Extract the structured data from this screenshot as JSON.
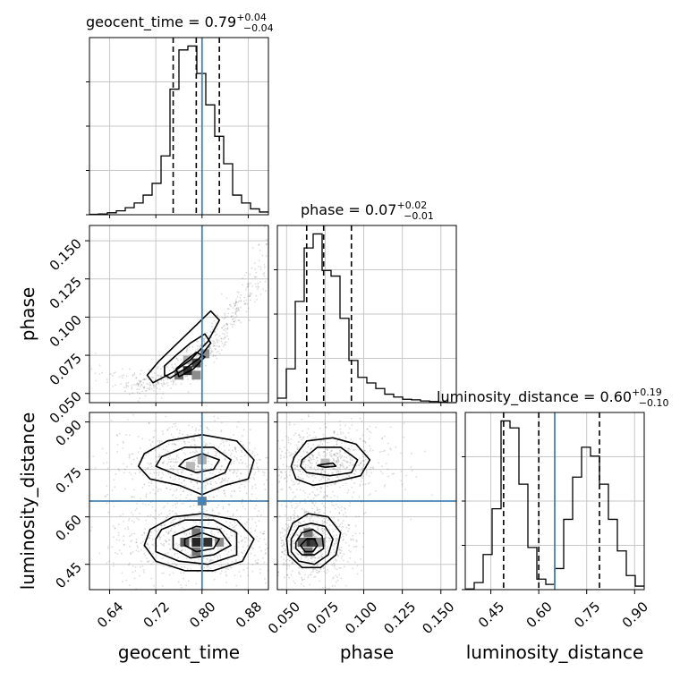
{
  "chart_data": {
    "type": "corner",
    "parameters": [
      {
        "name": "geocent_time",
        "axis_label": "geocent_time",
        "title_prefix": "geocent_time = ",
        "title_median": "0.79",
        "title_plus": "+0.04",
        "title_minus": "−0.04",
        "range": [
          0.605,
          0.915
        ],
        "ticks": [
          0.64,
          0.72,
          0.8,
          0.88
        ],
        "tick_labels": [
          "0.64",
          "0.72",
          "0.80",
          "0.88"
        ],
        "truth": 0.8,
        "quantiles": [
          0.75,
          0.79,
          0.83
        ],
        "hist": {
          "edges": [
            0.605,
            0.6205,
            0.636,
            0.6515,
            0.667,
            0.6825,
            0.698,
            0.7135,
            0.729,
            0.7445,
            0.76,
            0.7755,
            0.791,
            0.8065,
            0.822,
            0.8375,
            0.853,
            0.8685,
            0.884,
            0.8995,
            0.915
          ],
          "counts": [
            1,
            2,
            5,
            10,
            18,
            30,
            50,
            80,
            150,
            320,
            420,
            430,
            360,
            280,
            200,
            130,
            50,
            30,
            15,
            7
          ]
        }
      },
      {
        "name": "phase",
        "axis_label": "phase",
        "title_prefix": "phase = ",
        "title_median": "0.07",
        "title_plus": "+0.02",
        "title_minus": "−0.01",
        "range": [
          0.044,
          0.16
        ],
        "ticks": [
          0.05,
          0.075,
          0.1,
          0.125,
          0.15
        ],
        "tick_labels": [
          "0.050",
          "0.075",
          "0.100",
          "0.125",
          "0.150"
        ],
        "truth": null,
        "quantiles": [
          0.063,
          0.074,
          0.092
        ],
        "hist": {
          "edges": [
            0.044,
            0.0498,
            0.0556,
            0.0614,
            0.0672,
            0.073,
            0.0788,
            0.0846,
            0.0904,
            0.0962,
            0.102,
            0.1078,
            0.1136,
            0.1194,
            0.1252,
            0.131,
            0.1368,
            0.1426,
            0.1484,
            0.1542,
            0.16
          ],
          "counts": [
            8,
            60,
            180,
            275,
            300,
            235,
            225,
            150,
            75,
            45,
            35,
            25,
            15,
            10,
            6,
            5,
            3,
            2,
            1,
            0
          ]
        }
      },
      {
        "name": "luminosity_distance",
        "axis_label": "luminosity_distance",
        "title_prefix": "luminosity_distance = ",
        "title_median": "0.60",
        "title_plus": "+0.19",
        "title_minus": "−0.10",
        "range": [
          0.37,
          0.93
        ],
        "ticks": [
          0.45,
          0.6,
          0.75,
          0.9
        ],
        "tick_labels": [
          "0.45",
          "0.60",
          "0.75",
          "0.90"
        ],
        "truth": 0.65,
        "quantiles": [
          0.49,
          0.6,
          0.79
        ],
        "hist": {
          "edges": [
            0.37,
            0.398,
            0.426,
            0.454,
            0.482,
            0.51,
            0.538,
            0.566,
            0.594,
            0.622,
            0.65,
            0.678,
            0.706,
            0.734,
            0.762,
            0.79,
            0.818,
            0.846,
            0.874,
            0.902,
            0.93
          ],
          "counts": [
            2,
            20,
            100,
            230,
            480,
            460,
            300,
            120,
            30,
            15,
            60,
            200,
            320,
            405,
            380,
            300,
            200,
            110,
            40,
            10
          ]
        }
      }
    ],
    "pairs": [
      {
        "x": "geocent_time",
        "y": "phase",
        "truth_x": 0.8,
        "truth_y": null,
        "contours": [
          [
            [
              0.72,
              0.058
            ],
            [
              0.75,
              0.064
            ],
            [
              0.78,
              0.072
            ],
            [
              0.81,
              0.084
            ],
            [
              0.83,
              0.098
            ],
            [
              0.815,
              0.104
            ],
            [
              0.785,
              0.093
            ],
            [
              0.755,
              0.082
            ],
            [
              0.725,
              0.071
            ],
            [
              0.705,
              0.062
            ],
            [
              0.715,
              0.057
            ]
          ],
          [
            [
              0.745,
              0.06
            ],
            [
              0.77,
              0.066
            ],
            [
              0.795,
              0.073
            ],
            [
              0.815,
              0.083
            ],
            [
              0.805,
              0.089
            ],
            [
              0.78,
              0.083
            ],
            [
              0.755,
              0.075
            ],
            [
              0.735,
              0.068
            ],
            [
              0.735,
              0.062
            ]
          ],
          [
            [
              0.76,
              0.061
            ],
            [
              0.785,
              0.066
            ],
            [
              0.805,
              0.074
            ],
            [
              0.79,
              0.077
            ],
            [
              0.77,
              0.071
            ],
            [
              0.755,
              0.066
            ]
          ]
        ],
        "dense_cells": [
          [
            0.775,
            0.065,
            0.9
          ],
          [
            0.79,
            0.07,
            0.8
          ],
          [
            0.76,
            0.062,
            0.6
          ],
          [
            0.805,
            0.076,
            0.5
          ],
          [
            0.79,
            0.062,
            0.5
          ],
          [
            0.775,
            0.072,
            0.35
          ]
        ]
      },
      {
        "x": "geocent_time",
        "y": "luminosity_distance",
        "truth_x": 0.8,
        "truth_y": 0.65,
        "contours": [
          [
            [
              0.7,
              0.8
            ],
            [
              0.74,
              0.84
            ],
            [
              0.8,
              0.86
            ],
            [
              0.86,
              0.84
            ],
            [
              0.89,
              0.78
            ],
            [
              0.88,
              0.72
            ],
            [
              0.84,
              0.7
            ],
            [
              0.8,
              0.67
            ],
            [
              0.76,
              0.7
            ],
            [
              0.71,
              0.72
            ],
            [
              0.69,
              0.76
            ]
          ],
          [
            [
              0.73,
              0.79
            ],
            [
              0.77,
              0.82
            ],
            [
              0.82,
              0.82
            ],
            [
              0.85,
              0.78
            ],
            [
              0.84,
              0.74
            ],
            [
              0.8,
              0.71
            ],
            [
              0.76,
              0.73
            ],
            [
              0.72,
              0.76
            ]
          ],
          [
            [
              0.77,
              0.78
            ],
            [
              0.8,
              0.8
            ],
            [
              0.83,
              0.78
            ],
            [
              0.82,
              0.75
            ],
            [
              0.79,
              0.74
            ],
            [
              0.76,
              0.76
            ]
          ],
          [
            [
              0.71,
              0.56
            ],
            [
              0.75,
              0.6
            ],
            [
              0.8,
              0.61
            ],
            [
              0.86,
              0.59
            ],
            [
              0.89,
              0.53
            ],
            [
              0.87,
              0.46
            ],
            [
              0.82,
              0.43
            ],
            [
              0.77,
              0.43
            ],
            [
              0.72,
              0.46
            ],
            [
              0.7,
              0.51
            ]
          ],
          [
            [
              0.73,
              0.56
            ],
            [
              0.77,
              0.59
            ],
            [
              0.82,
              0.59
            ],
            [
              0.86,
              0.55
            ],
            [
              0.86,
              0.48
            ],
            [
              0.81,
              0.45
            ],
            [
              0.76,
              0.46
            ],
            [
              0.72,
              0.49
            ],
            [
              0.72,
              0.53
            ]
          ],
          [
            [
              0.75,
              0.54
            ],
            [
              0.79,
              0.57
            ],
            [
              0.83,
              0.56
            ],
            [
              0.85,
              0.51
            ],
            [
              0.82,
              0.48
            ],
            [
              0.78,
              0.47
            ],
            [
              0.75,
              0.5
            ]
          ],
          [
            [
              0.77,
              0.53
            ],
            [
              0.8,
              0.55
            ],
            [
              0.83,
              0.53
            ],
            [
              0.82,
              0.5
            ],
            [
              0.79,
              0.49
            ],
            [
              0.77,
              0.51
            ]
          ]
        ],
        "dense_cells": [
          [
            0.79,
            0.52,
            0.95
          ],
          [
            0.81,
            0.52,
            0.9
          ],
          [
            0.77,
            0.52,
            0.7
          ],
          [
            0.79,
            0.55,
            0.6
          ],
          [
            0.79,
            0.49,
            0.6
          ],
          [
            0.83,
            0.52,
            0.5
          ],
          [
            0.8,
            0.78,
            0.35
          ],
          [
            0.78,
            0.76,
            0.3
          ],
          [
            0.8,
            0.65,
            0.55
          ]
        ]
      },
      {
        "x": "phase",
        "y": "luminosity_distance",
        "truth_x": null,
        "truth_y": 0.65,
        "contours": [
          [
            [
              0.055,
              0.79
            ],
            [
              0.063,
              0.84
            ],
            [
              0.08,
              0.85
            ],
            [
              0.095,
              0.83
            ],
            [
              0.104,
              0.78
            ],
            [
              0.098,
              0.73
            ],
            [
              0.08,
              0.71
            ],
            [
              0.067,
              0.7
            ],
            [
              0.056,
              0.72
            ],
            [
              0.053,
              0.76
            ]
          ],
          [
            [
              0.06,
              0.78
            ],
            [
              0.07,
              0.82
            ],
            [
              0.085,
              0.82
            ],
            [
              0.096,
              0.78
            ],
            [
              0.092,
              0.74
            ],
            [
              0.078,
              0.73
            ],
            [
              0.063,
              0.74
            ],
            [
              0.059,
              0.76
            ]
          ],
          [
            [
              0.072,
              0.765
            ],
            [
              0.08,
              0.77
            ],
            [
              0.082,
              0.76
            ],
            [
              0.075,
              0.757
            ],
            [
              0.07,
              0.762
            ]
          ],
          [
            [
              0.05,
              0.53
            ],
            [
              0.054,
              0.58
            ],
            [
              0.064,
              0.61
            ],
            [
              0.077,
              0.6
            ],
            [
              0.085,
              0.55
            ],
            [
              0.082,
              0.48
            ],
            [
              0.072,
              0.44
            ],
            [
              0.06,
              0.44
            ],
            [
              0.051,
              0.48
            ]
          ],
          [
            [
              0.053,
              0.53
            ],
            [
              0.058,
              0.57
            ],
            [
              0.066,
              0.58
            ],
            [
              0.075,
              0.57
            ],
            [
              0.08,
              0.53
            ],
            [
              0.077,
              0.48
            ],
            [
              0.068,
              0.45
            ],
            [
              0.058,
              0.46
            ],
            [
              0.053,
              0.49
            ]
          ],
          [
            [
              0.056,
              0.52
            ],
            [
              0.06,
              0.55
            ],
            [
              0.067,
              0.56
            ],
            [
              0.073,
              0.54
            ],
            [
              0.074,
              0.5
            ],
            [
              0.068,
              0.48
            ],
            [
              0.06,
              0.48
            ],
            [
              0.056,
              0.5
            ]
          ],
          [
            [
              0.059,
              0.51
            ],
            [
              0.063,
              0.53
            ],
            [
              0.068,
              0.53
            ],
            [
              0.07,
              0.51
            ],
            [
              0.067,
              0.49
            ],
            [
              0.062,
              0.49
            ]
          ]
        ],
        "dense_cells": [
          [
            0.064,
            0.52,
            0.95
          ],
          [
            0.068,
            0.52,
            0.85
          ],
          [
            0.06,
            0.52,
            0.7
          ],
          [
            0.064,
            0.55,
            0.6
          ],
          [
            0.064,
            0.49,
            0.6
          ],
          [
            0.072,
            0.52,
            0.5
          ],
          [
            0.075,
            0.77,
            0.3
          ]
        ]
      }
    ],
    "truth_color": "#4682b4",
    "grid": true
  }
}
